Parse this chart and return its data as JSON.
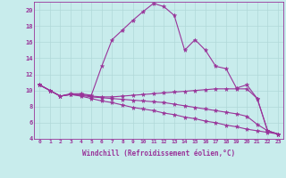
{
  "xlabel": "Windchill (Refroidissement éolien,°C)",
  "background_color": "#c8ecec",
  "grid_color": "#b0d8d8",
  "line_color": "#993399",
  "xlim": [
    -0.5,
    23.5
  ],
  "ylim": [
    4,
    21
  ],
  "xticks": [
    0,
    1,
    2,
    3,
    4,
    5,
    6,
    7,
    8,
    9,
    10,
    11,
    12,
    13,
    14,
    15,
    16,
    17,
    18,
    19,
    20,
    21,
    22,
    23
  ],
  "yticks": [
    4,
    6,
    8,
    10,
    12,
    14,
    16,
    18,
    20
  ],
  "series": [
    [
      10.7,
      10.0,
      9.3,
      9.6,
      9.6,
      9.4,
      13.0,
      16.3,
      17.5,
      18.7,
      19.8,
      20.8,
      20.4,
      19.3,
      15.0,
      16.3,
      15.0,
      13.0,
      12.7,
      10.3,
      10.7,
      9.0,
      5.0,
      4.6
    ],
    [
      10.7,
      10.0,
      9.3,
      9.5,
      9.5,
      9.3,
      9.2,
      9.2,
      9.3,
      9.4,
      9.5,
      9.6,
      9.7,
      9.8,
      9.9,
      10.0,
      10.1,
      10.2,
      10.2,
      10.2,
      10.2,
      9.0,
      5.0,
      4.6
    ],
    [
      10.7,
      10.0,
      9.3,
      9.5,
      9.4,
      9.2,
      9.1,
      9.0,
      8.9,
      8.8,
      8.7,
      8.6,
      8.5,
      8.3,
      8.1,
      7.9,
      7.7,
      7.5,
      7.3,
      7.1,
      6.8,
      5.8,
      5.0,
      4.6
    ],
    [
      10.7,
      10.0,
      9.3,
      9.5,
      9.3,
      9.0,
      8.7,
      8.5,
      8.2,
      7.9,
      7.7,
      7.5,
      7.2,
      7.0,
      6.7,
      6.5,
      6.2,
      6.0,
      5.7,
      5.5,
      5.2,
      5.0,
      4.8,
      4.6
    ]
  ]
}
